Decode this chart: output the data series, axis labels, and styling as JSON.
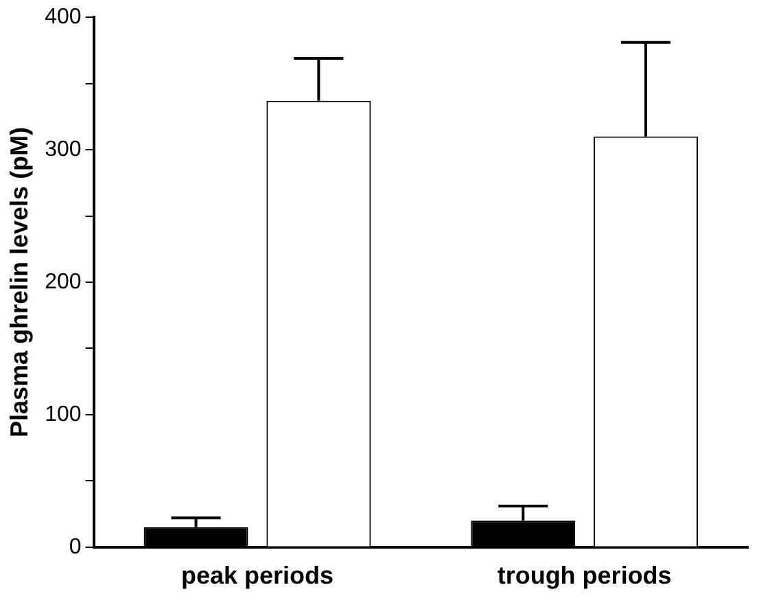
{
  "chart_data": {
    "type": "bar",
    "ylabel": "Plasma ghrelin levels (pM)",
    "categories": [
      "peak periods",
      "trough periods"
    ],
    "series": [
      {
        "color": "#000000",
        "values": [
          15,
          20
        ],
        "errors": [
          [
            15,
            22
          ],
          [
            20,
            31
          ]
        ]
      },
      {
        "color": "#ffffff",
        "values": [
          337,
          310
        ],
        "errors": [
          [
            337,
            369
          ],
          [
            310,
            381
          ]
        ]
      }
    ],
    "ylim": [
      0,
      400
    ],
    "yticks": [
      0,
      {
        "value": 50,
        "label": null
      },
      100,
      {
        "value": 150,
        "label": null
      },
      200,
      {
        "value": 250,
        "label": null
      },
      300,
      {
        "value": 350,
        "label": null
      },
      400
    ],
    "grid": false,
    "legend": false
  }
}
